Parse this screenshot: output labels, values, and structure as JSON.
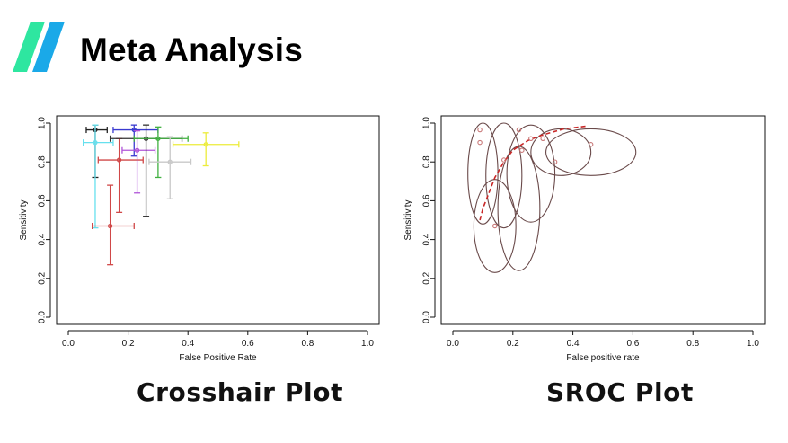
{
  "slide": {
    "title": "Meta Analysis",
    "accent_colors": [
      "#2ee6a0",
      "#1aa9e8"
    ]
  },
  "captions": {
    "left": "Crosshair Plot",
    "right": "SROC Plot"
  },
  "chart_data": [
    {
      "type": "scatter",
      "variant": "crosshair",
      "title": "",
      "xlabel": "False Positive Rate",
      "ylabel": "Sensitivity",
      "xlim": [
        0,
        1
      ],
      "ylim": [
        0,
        1
      ],
      "xticks": [
        "0.0",
        "0.2",
        "0.4",
        "0.6",
        "0.8",
        "1.0"
      ],
      "yticks": [
        "0.0",
        "0.2",
        "0.4",
        "0.6",
        "0.8",
        "1.0"
      ],
      "grid": false,
      "legend": "none",
      "points": [
        {
          "x": 0.09,
          "y": 0.965,
          "xlo": 0.06,
          "xhi": 0.13,
          "ylo": 0.72,
          "yhi": 0.99,
          "color": "#222222"
        },
        {
          "x": 0.09,
          "y": 0.9,
          "xlo": 0.05,
          "xhi": 0.15,
          "ylo": 0.46,
          "yhi": 0.99,
          "color": "#66e0ee"
        },
        {
          "x": 0.14,
          "y": 0.47,
          "xlo": 0.08,
          "xhi": 0.22,
          "ylo": 0.27,
          "yhi": 0.68,
          "color": "#d04848"
        },
        {
          "x": 0.17,
          "y": 0.81,
          "xlo": 0.1,
          "xhi": 0.25,
          "ylo": 0.54,
          "yhi": 0.92,
          "color": "#d04848"
        },
        {
          "x": 0.22,
          "y": 0.965,
          "xlo": 0.15,
          "xhi": 0.3,
          "ylo": 0.83,
          "yhi": 0.99,
          "color": "#3a3ad0"
        },
        {
          "x": 0.23,
          "y": 0.86,
          "xlo": 0.18,
          "xhi": 0.29,
          "ylo": 0.64,
          "yhi": 0.96,
          "color": "#b054d8"
        },
        {
          "x": 0.26,
          "y": 0.92,
          "xlo": 0.14,
          "xhi": 0.38,
          "ylo": 0.52,
          "yhi": 0.99,
          "color": "#333333"
        },
        {
          "x": 0.3,
          "y": 0.92,
          "xlo": 0.22,
          "xhi": 0.4,
          "ylo": 0.72,
          "yhi": 0.98,
          "color": "#40b040"
        },
        {
          "x": 0.34,
          "y": 0.8,
          "xlo": 0.27,
          "xhi": 0.41,
          "ylo": 0.61,
          "yhi": 0.93,
          "color": "#c8c8c8"
        },
        {
          "x": 0.46,
          "y": 0.89,
          "xlo": 0.35,
          "xhi": 0.57,
          "ylo": 0.78,
          "yhi": 0.95,
          "color": "#ecec3a"
        }
      ]
    },
    {
      "type": "scatter",
      "variant": "sroc",
      "title": "",
      "xlabel": "False positive rate",
      "ylabel": "Sensitivity",
      "xlim": [
        0,
        1
      ],
      "ylim": [
        0,
        1
      ],
      "xticks": [
        "0.0",
        "0.2",
        "0.4",
        "0.6",
        "0.8",
        "1.0"
      ],
      "yticks": [
        "0.0",
        "0.2",
        "0.4",
        "0.6",
        "0.8",
        "1.0"
      ],
      "grid": false,
      "legend": "none",
      "points": [
        {
          "x": 0.09,
          "y": 0.965
        },
        {
          "x": 0.09,
          "y": 0.9
        },
        {
          "x": 0.14,
          "y": 0.47
        },
        {
          "x": 0.17,
          "y": 0.81
        },
        {
          "x": 0.22,
          "y": 0.965
        },
        {
          "x": 0.23,
          "y": 0.86
        },
        {
          "x": 0.26,
          "y": 0.92
        },
        {
          "x": 0.3,
          "y": 0.92
        },
        {
          "x": 0.34,
          "y": 0.8
        },
        {
          "x": 0.46,
          "y": 0.89
        }
      ],
      "regions": [
        {
          "cx": 0.14,
          "cy": 0.47,
          "rx": 0.07,
          "ry": 0.24
        },
        {
          "cx": 0.1,
          "cy": 0.74,
          "rx": 0.05,
          "ry": 0.26
        },
        {
          "cx": 0.17,
          "cy": 0.73,
          "rx": 0.06,
          "ry": 0.27
        },
        {
          "cx": 0.22,
          "cy": 0.56,
          "rx": 0.07,
          "ry": 0.32
        },
        {
          "cx": 0.26,
          "cy": 0.74,
          "rx": 0.08,
          "ry": 0.25
        },
        {
          "cx": 0.36,
          "cy": 0.85,
          "rx": 0.1,
          "ry": 0.12
        },
        {
          "cx": 0.46,
          "cy": 0.85,
          "rx": 0.15,
          "ry": 0.12
        }
      ],
      "curve": [
        {
          "x": 0.09,
          "y": 0.5
        },
        {
          "x": 0.1,
          "y": 0.56
        },
        {
          "x": 0.12,
          "y": 0.64
        },
        {
          "x": 0.14,
          "y": 0.72
        },
        {
          "x": 0.17,
          "y": 0.8
        },
        {
          "x": 0.2,
          "y": 0.86
        },
        {
          "x": 0.25,
          "y": 0.91
        },
        {
          "x": 0.3,
          "y": 0.94
        },
        {
          "x": 0.37,
          "y": 0.97
        },
        {
          "x": 0.45,
          "y": 0.985
        }
      ],
      "point_color": "#c87878",
      "region_color": "#6a4a4a",
      "curve_color": "#c82828"
    }
  ]
}
